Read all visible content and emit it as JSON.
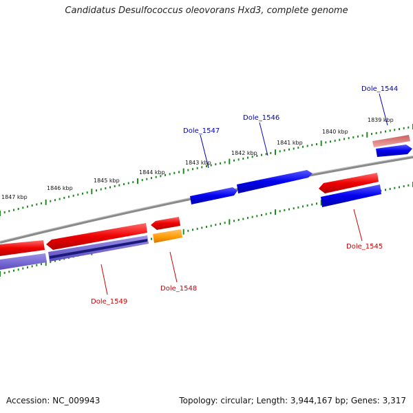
{
  "title": "Candidatus Desulfococcus oleovorans Hxd3, complete genome",
  "footer": {
    "accession": "Accession: NC_009943",
    "summary": "Topology: circular; Length: 3,944,167 bp; Genes: 3,317"
  },
  "colors": {
    "backbone": "#8a8a8a",
    "ticks": "#1f8a1f",
    "forward_gene": "#ee0000",
    "reverse_gene": "#0000ee",
    "label_forward": "#cc0000",
    "label_reverse": "#0000bb",
    "highlight_orange": "#ff9900",
    "muted_blue": "#6a5acd",
    "muted_red": "#e08080"
  },
  "scale_labels": [
    "1839 kbp",
    "1840 kbp",
    "1841 kbp",
    "1842 kbp",
    "1843 kbp",
    "1844 kbp",
    "1845 kbp",
    "1846 kbp",
    "1847 kbp"
  ],
  "gene_labels": [
    {
      "name": "Dole_1544",
      "strand": "reverse"
    },
    {
      "name": "Dole_1545",
      "strand": "forward"
    },
    {
      "name": "Dole_1546",
      "strand": "reverse"
    },
    {
      "name": "Dole_1547",
      "strand": "reverse"
    },
    {
      "name": "Dole_1548",
      "strand": "forward"
    },
    {
      "name": "Dole_1549",
      "strand": "forward"
    }
  ]
}
